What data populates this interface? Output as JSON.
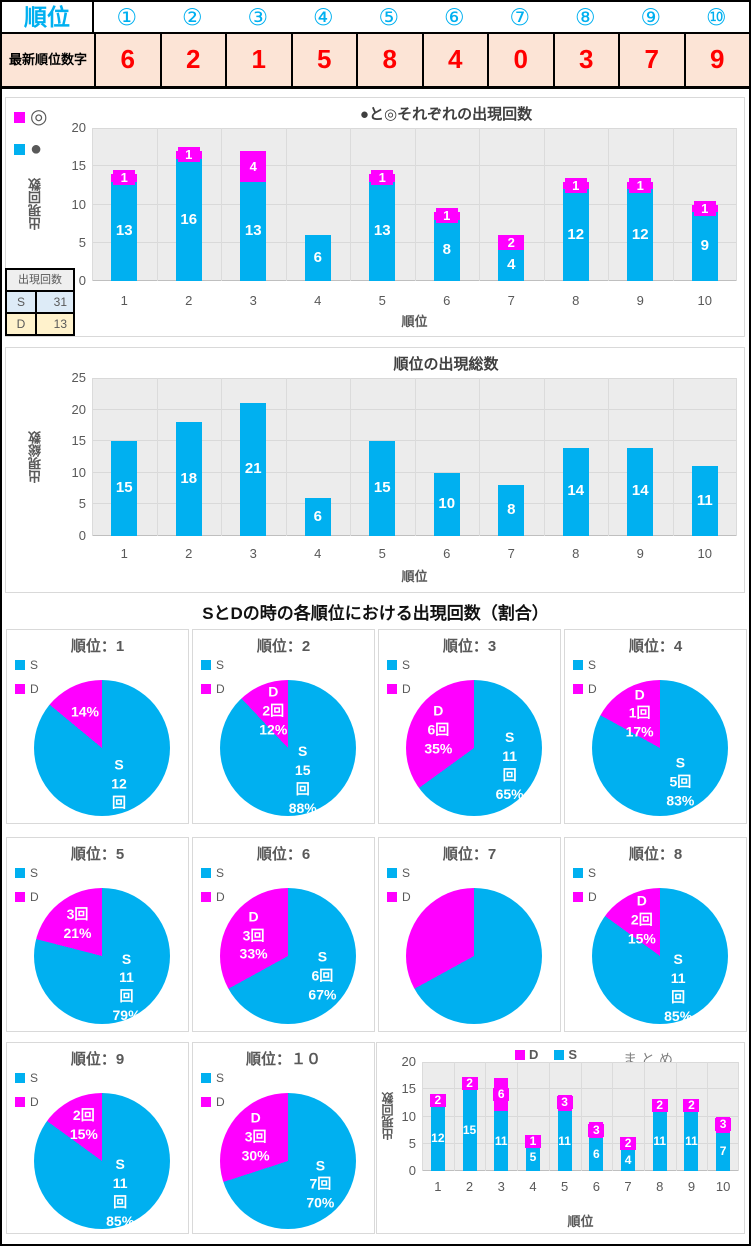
{
  "colors": {
    "accent_cyan": "#00B0F0",
    "accent_magenta": "#FF00FF",
    "value_red": "#FF0000",
    "header_row_bg": "#FCE4D6",
    "table_s_bg": "#DDEBF7",
    "table_d_bg": "#FFF2CC",
    "plot_bg": "#ECECEC"
  },
  "header_table": {
    "title": "順位",
    "circled": [
      "①",
      "②",
      "③",
      "④",
      "⑤",
      "⑥",
      "⑦",
      "⑧",
      "⑨",
      "⑩"
    ],
    "row_label": "最新順位数字",
    "values": [
      "6",
      "2",
      "1",
      "5",
      "8",
      "4",
      "0",
      "3",
      "7",
      "9"
    ]
  },
  "side_table": {
    "header": "出現回数",
    "rows": [
      {
        "label": "S",
        "value": "31"
      },
      {
        "label": "D",
        "value": "13"
      }
    ]
  },
  "section_title": "SとDの時の各順位における出現回数（割合）",
  "chart_data": [
    {
      "id": "chart1",
      "type": "bar",
      "stacked": true,
      "title": "●と◎それぞれの出現回数",
      "ylabel": "出現回数",
      "xlabel": "順位",
      "ylim": [
        0,
        20
      ],
      "yticks": [
        0,
        5,
        10,
        15,
        20
      ],
      "categories": [
        "1",
        "2",
        "3",
        "4",
        "5",
        "6",
        "7",
        "8",
        "9",
        "10"
      ],
      "legend": [
        {
          "label": "◎",
          "color": "#FF00FF"
        },
        {
          "label": "●",
          "color": "#00B0F0"
        }
      ],
      "series": [
        {
          "name": "S",
          "color": "#00B0F0",
          "values": [
            13,
            16,
            13,
            6,
            13,
            8,
            4,
            12,
            12,
            9
          ]
        },
        {
          "name": "D",
          "color": "#FF00FF",
          "values": [
            1,
            1,
            4,
            0,
            1,
            1,
            2,
            1,
            1,
            1
          ]
        }
      ]
    },
    {
      "id": "chart2",
      "type": "bar",
      "stacked": false,
      "title": "順位の出現総数",
      "ylabel": "出現総数",
      "xlabel": "順位",
      "ylim": [
        0,
        25
      ],
      "yticks": [
        0,
        5,
        10,
        15,
        20,
        25
      ],
      "categories": [
        "1",
        "2",
        "3",
        "4",
        "5",
        "6",
        "7",
        "8",
        "9",
        "10"
      ],
      "color": "#00B0F0",
      "values": [
        15,
        18,
        21,
        6,
        15,
        10,
        8,
        14,
        14,
        11
      ]
    },
    {
      "id": "pies",
      "type": "pie",
      "section_title": "SとDの時の各順位における出現回数（割合）",
      "legend": [
        {
          "label": "S",
          "color": "#00B0F0"
        },
        {
          "label": "D",
          "color": "#FF00FF"
        }
      ],
      "pies": [
        {
          "title": "順位：1",
          "s": 12,
          "d": 2,
          "s_pct": 86,
          "d_pct": 14,
          "s_lines": [
            "S",
            "12",
            "回"
          ],
          "d_lines": [
            "14%"
          ]
        },
        {
          "title": "順位：2",
          "s": 15,
          "d": 2,
          "s_pct": 88,
          "d_pct": 12,
          "s_lines": [
            "S",
            "15",
            "回",
            "88%"
          ],
          "d_lines": [
            "D",
            "2回",
            "12%"
          ]
        },
        {
          "title": "順位：3",
          "s": 11,
          "d": 6,
          "s_pct": 65,
          "d_pct": 35,
          "s_lines": [
            "S",
            "11",
            "回",
            "65%"
          ],
          "d_lines": [
            "D",
            "6回",
            "35%"
          ]
        },
        {
          "title": "順位：4",
          "s": 5,
          "d": 1,
          "s_pct": 83,
          "d_pct": 17,
          "s_lines": [
            "S",
            "5回",
            "83%"
          ],
          "d_lines": [
            "D",
            "1回",
            "17%"
          ]
        },
        {
          "title": "順位：5",
          "s": 11,
          "d": 3,
          "s_pct": 79,
          "d_pct": 21,
          "s_lines": [
            "S",
            "11",
            "回",
            "79%"
          ],
          "d_lines": [
            "3回",
            "21%"
          ]
        },
        {
          "title": "順位：6",
          "s": 6,
          "d": 3,
          "s_pct": 67,
          "d_pct": 33,
          "s_lines": [
            "S",
            "6回",
            "67%"
          ],
          "d_lines": [
            "D",
            "3回",
            "33%"
          ]
        },
        {
          "title": "順位：7",
          "s": 4,
          "d": 2,
          "s_pct": 67,
          "d_pct": 33,
          "s_lines": [],
          "d_lines": []
        },
        {
          "title": "順位：8",
          "s": 11,
          "d": 2,
          "s_pct": 85,
          "d_pct": 15,
          "s_lines": [
            "S",
            "11",
            "回",
            "85%"
          ],
          "d_lines": [
            "D",
            "2回",
            "15%"
          ]
        },
        {
          "title": "順位：9",
          "s": 11,
          "d": 2,
          "s_pct": 85,
          "d_pct": 15,
          "s_lines": [
            "S",
            "11",
            "回",
            "85%"
          ],
          "d_lines": [
            "2回",
            "15%"
          ]
        },
        {
          "title": "順位：１０",
          "s": 7,
          "d": 3,
          "s_pct": 70,
          "d_pct": 30,
          "s_lines": [
            "S",
            "7回",
            "70%"
          ],
          "d_lines": [
            "D",
            "3回",
            "30%"
          ]
        }
      ]
    },
    {
      "id": "matome",
      "type": "bar",
      "stacked": true,
      "title": "まとめ",
      "ylabel": "出現回数",
      "xlabel": "順位",
      "ylim": [
        0,
        20
      ],
      "yticks": [
        0,
        5,
        10,
        15,
        20
      ],
      "categories": [
        "1",
        "2",
        "3",
        "4",
        "5",
        "6",
        "7",
        "8",
        "9",
        "10"
      ],
      "legend": [
        {
          "label": "D",
          "color": "#FF00FF"
        },
        {
          "label": "S",
          "color": "#00B0F0"
        }
      ],
      "series": [
        {
          "name": "S",
          "color": "#00B0F0",
          "values": [
            12,
            15,
            11,
            5,
            11,
            6,
            4,
            11,
            11,
            7
          ]
        },
        {
          "name": "D",
          "color": "#FF00FF",
          "values": [
            2,
            2,
            6,
            1,
            3,
            3,
            2,
            2,
            2,
            3
          ]
        }
      ]
    }
  ]
}
